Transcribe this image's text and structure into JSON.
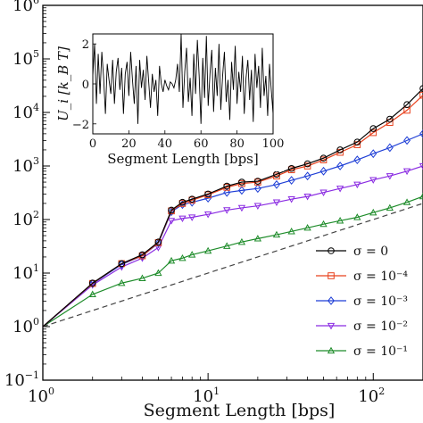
{
  "chart_data": [
    {
      "type": "line",
      "title": "",
      "xlabel": "Segment Length [bps]",
      "ylabel": "",
      "xscale": "log",
      "yscale": "log",
      "xlim": [
        1,
        200
      ],
      "ylim": [
        0.1,
        1000000
      ],
      "x_ticks": [
        {
          "value": 1,
          "base": "10",
          "exp": "0"
        },
        {
          "value": 10,
          "base": "10",
          "exp": "1"
        },
        {
          "value": 100,
          "base": "10",
          "exp": "2"
        }
      ],
      "y_ticks": [
        {
          "value": 0.1,
          "base": "10",
          "exp": "−1"
        },
        {
          "value": 1,
          "base": "10",
          "exp": "0"
        },
        {
          "value": 10,
          "base": "10",
          "exp": "1"
        },
        {
          "value": 100,
          "base": "10",
          "exp": "2"
        },
        {
          "value": 1000,
          "base": "10",
          "exp": "3"
        },
        {
          "value": 10000,
          "base": "10",
          "exp": "4"
        },
        {
          "value": 100000,
          "base": "10",
          "exp": "5"
        },
        {
          "value": 1000000,
          "base": "10",
          "exp": "6"
        }
      ],
      "reference_line": {
        "style": "dashed",
        "color": "#444444",
        "x": [
          1,
          200
        ],
        "y": [
          1,
          200
        ]
      },
      "legend_position": "lower-right",
      "series": [
        {
          "name": "σ = 0",
          "color": "#000000",
          "marker": "circle",
          "x": [
            1,
            2,
            3,
            4,
            5,
            6,
            7,
            8,
            10,
            13,
            16,
            20,
            26,
            32,
            40,
            50,
            63,
            80,
            100,
            126,
            160,
            200
          ],
          "y": [
            1,
            6.5,
            15,
            22,
            38,
            150,
            210,
            240,
            300,
            420,
            500,
            520,
            700,
            900,
            1100,
            1400,
            2000,
            2800,
            5000,
            7500,
            14000,
            28000
          ]
        },
        {
          "name": "σ = 10⁻⁴",
          "color": "#e8401c",
          "marker": "square",
          "x": [
            1,
            2,
            3,
            4,
            5,
            6,
            7,
            8,
            10,
            13,
            16,
            20,
            26,
            32,
            40,
            50,
            63,
            80,
            100,
            126,
            160,
            200
          ],
          "y": [
            1,
            6.4,
            15,
            21,
            37,
            145,
            200,
            230,
            290,
            400,
            470,
            500,
            650,
            850,
            1000,
            1300,
            1800,
            2500,
            4200,
            6500,
            11000,
            21000
          ]
        },
        {
          "name": "σ = 10⁻³",
          "color": "#1f3fd6",
          "marker": "diamond",
          "x": [
            1,
            2,
            3,
            4,
            5,
            6,
            7,
            8,
            10,
            13,
            16,
            20,
            26,
            32,
            40,
            50,
            63,
            80,
            100,
            126,
            160,
            200
          ],
          "y": [
            1,
            6.3,
            14.5,
            21,
            36,
            140,
            190,
            210,
            250,
            320,
            350,
            380,
            450,
            540,
            650,
            800,
            1000,
            1300,
            1700,
            2200,
            3000,
            4000
          ]
        },
        {
          "name": "σ = 10⁻²",
          "color": "#8a2be2",
          "marker": "triangle-down",
          "x": [
            1,
            2,
            3,
            4,
            5,
            6,
            7,
            8,
            10,
            13,
            16,
            20,
            26,
            32,
            40,
            50,
            63,
            80,
            100,
            126,
            160,
            200
          ],
          "y": [
            1,
            6,
            13,
            19,
            30,
            95,
            105,
            110,
            125,
            150,
            165,
            180,
            210,
            240,
            270,
            320,
            380,
            450,
            550,
            650,
            800,
            1000
          ]
        },
        {
          "name": "σ = 10⁻¹",
          "color": "#1e8c2a",
          "marker": "triangle-up",
          "x": [
            1,
            2,
            3,
            4,
            5,
            6,
            7,
            8,
            10,
            13,
            16,
            20,
            26,
            32,
            40,
            50,
            63,
            80,
            100,
            126,
            160,
            200
          ],
          "y": [
            1,
            4,
            6.5,
            8,
            10,
            17,
            19,
            22,
            26,
            32,
            38,
            44,
            52,
            60,
            70,
            82,
            95,
            110,
            135,
            165,
            210,
            270
          ]
        }
      ]
    },
    {
      "type": "line",
      "title": "",
      "xlabel": "Segment Length [bps]",
      "ylabel": "U_i [k_B T]",
      "xlim": [
        0,
        100
      ],
      "ylim": [
        -2.5,
        2.5
      ],
      "x_ticks": [
        0,
        20,
        40,
        60,
        80,
        100
      ],
      "y_ticks": [
        -2,
        0,
        2
      ],
      "series": [
        {
          "name": "",
          "color": "#000000",
          "x": [
            0,
            1,
            2,
            3,
            4,
            5,
            6,
            7,
            8,
            9,
            10,
            11,
            12,
            13,
            14,
            15,
            16,
            17,
            18,
            19,
            20,
            21,
            22,
            23,
            24,
            25,
            26,
            27,
            28,
            29,
            30,
            31,
            32,
            33,
            34,
            35,
            36,
            37,
            38,
            39,
            40,
            41,
            42,
            43,
            44,
            45,
            46,
            47,
            48,
            49,
            50,
            51,
            52,
            53,
            54,
            55,
            56,
            57,
            58,
            59,
            60,
            61,
            62,
            63,
            64,
            65,
            66,
            67,
            68,
            69,
            70,
            71,
            72,
            73,
            74,
            75,
            76,
            77,
            78,
            79,
            80,
            81,
            82,
            83,
            84,
            85,
            86,
            87,
            88,
            89,
            90,
            91,
            92,
            93,
            94,
            95,
            96,
            97,
            98,
            99,
            100
          ],
          "y": [
            0.4,
            2,
            -1,
            1.5,
            -0.5,
            1.6,
            0.3,
            -1.5,
            1,
            0.2,
            -0.5,
            1.2,
            -1,
            0.6,
            1.3,
            -0.3,
            0.8,
            -1.5,
            0.5,
            1.1,
            -0.6,
            1.6,
            0.2,
            -1,
            0.9,
            -2,
            1.2,
            -0.2,
            0.7,
            -0.8,
            1.4,
            0.1,
            -1.2,
            0.5,
            -0.4,
            0.2,
            -1.6,
            0.9,
            0,
            -0.4,
            0.2,
            -0.1,
            -0.3,
            0.1,
            0,
            -0.2,
            0.2,
            1,
            -0.4,
            2.5,
            -1.2,
            0.6,
            1.8,
            -0.9,
            0.3,
            -1.6,
            1.5,
            -0.5,
            2.2,
            0.4,
            -2,
            1.3,
            -0.7,
            2.4,
            -1.1,
            0.5,
            1.7,
            -1.4,
            0.8,
            -0.6,
            2,
            -1.3,
            0.4,
            1.6,
            -0.9,
            0.2,
            -1.8,
            1.1,
            -0.3,
            1.9,
            -1,
            0.6,
            -0.4,
            1.4,
            -1.5,
            0.3,
            1.2,
            -0.8,
            0.7,
            -1.9,
            1.5,
            -0.2,
            0.9,
            -1.2,
            1.8,
            -0.6,
            0.4,
            -1.6,
            1,
            -0.3,
            -1.5
          ]
        }
      ]
    }
  ]
}
